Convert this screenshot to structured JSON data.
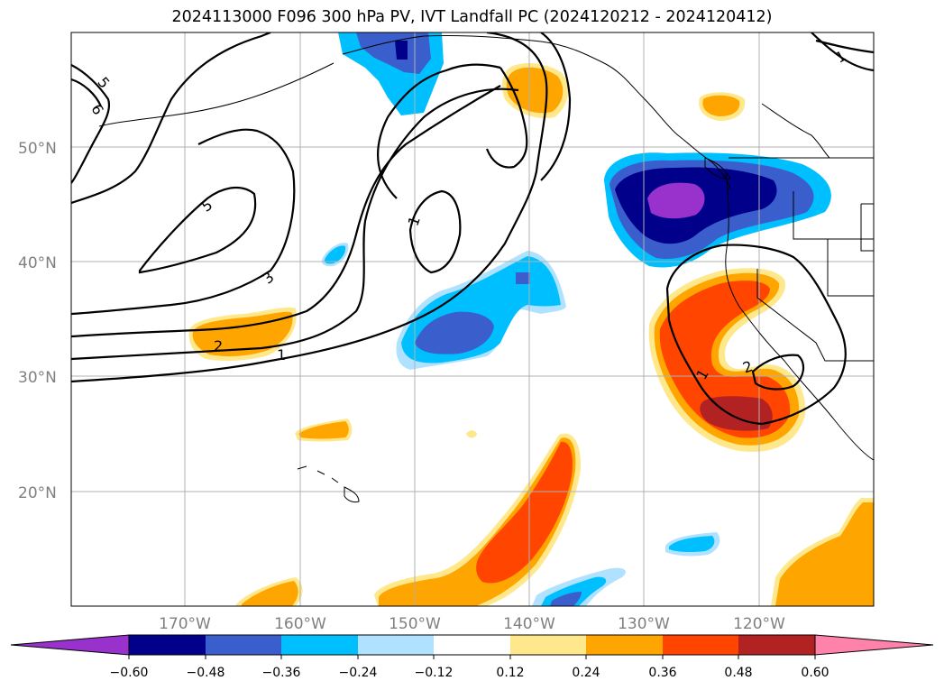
{
  "title": "2024113000 F096 300 hPa PV, IVT Landfall PC (2024120212 - 2024120412)",
  "lat_labels": [
    "50°N",
    "40°N",
    "30°N",
    "20°N"
  ],
  "lon_labels": [
    "170°W",
    "160°W",
    "150°W",
    "140°W",
    "130°W",
    "120°W"
  ],
  "colorbar": {
    "ticks": [
      "−0.60",
      "−0.48",
      "−0.36",
      "−0.24",
      "−0.12",
      "0.12",
      "0.24",
      "0.36",
      "0.48",
      "0.60"
    ],
    "colors": [
      "#9932cc",
      "#00008b",
      "#3a5fcd",
      "#00bfff",
      "#b0e2ff",
      "#ffffff",
      "#ffe88c",
      "#ffa500",
      "#ff4500",
      "#b22222",
      "#ff82ab"
    ]
  },
  "pv_contour_labels": [
    "5",
    "6",
    "5",
    "3",
    "2",
    "1",
    "1",
    "1",
    "2",
    "1"
  ]
}
